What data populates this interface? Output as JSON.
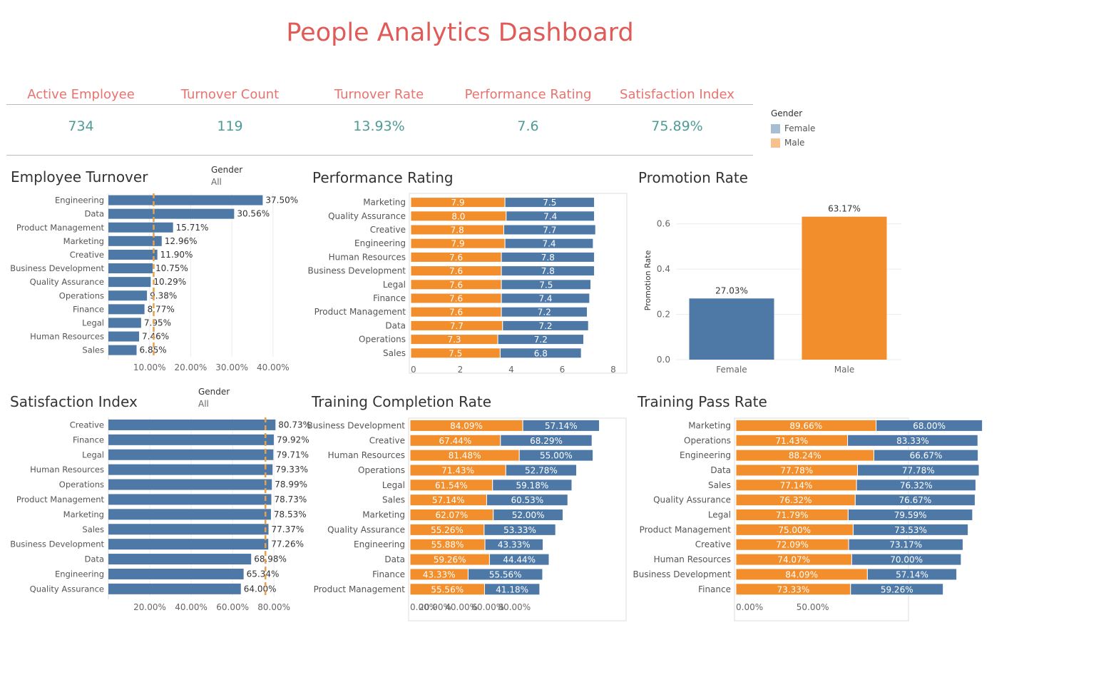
{
  "title": "People Analytics Dashboard",
  "kpis": [
    {
      "label": "Active Employee",
      "value": "734"
    },
    {
      "label": "Turnover Count",
      "value": "119"
    },
    {
      "label": "Turnover Rate",
      "value": "13.93%"
    },
    {
      "label": "Performance Rating",
      "value": "7.6"
    },
    {
      "label": "Satisfaction Index",
      "value": "75.89%"
    }
  ],
  "legend": {
    "title": "Gender",
    "items": [
      {
        "label": "Female",
        "color": "#a8bcd4"
      },
      {
        "label": "Male",
        "color": "#f7c08f"
      }
    ]
  },
  "filters": {
    "turnover": {
      "title": "Gender",
      "value": "All"
    },
    "satisfaction": {
      "title": "Gender",
      "value": "All"
    }
  },
  "colors": {
    "blue": "#4e79a7",
    "orange": "#f28e2b",
    "refline": "#e8a04a"
  },
  "chart_data": [
    {
      "id": "turnover",
      "type": "bar",
      "title": "Employee Turnover",
      "categories": [
        "Engineering",
        "Data",
        "Product Management",
        "Marketing",
        "Creative",
        "Business Development",
        "Quality Assurance",
        "Operations",
        "Finance",
        "Legal",
        "Human Resources",
        "Sales"
      ],
      "values": [
        37.5,
        30.56,
        15.71,
        12.96,
        11.9,
        10.75,
        10.29,
        9.38,
        8.77,
        7.95,
        7.46,
        6.85
      ],
      "value_labels": [
        "37.50%",
        "30.56%",
        "15.71%",
        "12.96%",
        "11.90%",
        "10.75%",
        "10.29%",
        "9.38%",
        "8.77%",
        "7.95%",
        "7.46%",
        "6.85%"
      ],
      "xlim": [
        0,
        48
      ],
      "ticks": [
        10,
        20,
        30,
        40
      ],
      "tick_labels": [
        "10.00%",
        "20.00%",
        "30.00%",
        "40.00%"
      ],
      "reference_line": 11
    },
    {
      "id": "performance",
      "type": "bar",
      "stacked": true,
      "title": "Performance Rating",
      "categories": [
        "Marketing",
        "Quality Assurance",
        "Creative",
        "Engineering",
        "Human Resources",
        "Business Development",
        "Legal",
        "Finance",
        "Product Management",
        "Data",
        "Operations",
        "Sales"
      ],
      "series": [
        {
          "values": [
            7.9,
            8.0,
            7.8,
            7.9,
            7.6,
            7.6,
            7.6,
            7.6,
            7.6,
            7.7,
            7.3,
            7.5
          ],
          "labels": [
            "7.9",
            "8.0",
            "7.8",
            "7.9",
            "7.6",
            "7.6",
            "7.6",
            "7.6",
            "7.6",
            "7.7",
            "7.3",
            "7.5"
          ],
          "color": "#f28e2b"
        },
        {
          "values": [
            7.5,
            7.4,
            7.7,
            7.4,
            7.8,
            7.8,
            7.5,
            7.4,
            7.2,
            7.2,
            7.2,
            6.8
          ],
          "labels": [
            "7.5",
            "7.4",
            "7.7",
            "7.4",
            "7.8",
            "7.8",
            "7.5",
            "7.4",
            "7.2",
            "7.2",
            "7.2",
            "6.8"
          ],
          "color": "#4e79a7"
        }
      ],
      "scale_max": 17.1,
      "ticks": [
        0,
        4.27,
        8.55,
        12.82,
        17.1
      ],
      "tick_labels": [
        "0",
        "2",
        "4",
        "6",
        "8"
      ]
    },
    {
      "id": "promotion",
      "type": "bar",
      "title": "Promotion Rate",
      "ylabel": "Promotion Rate",
      "categories": [
        "Female",
        "Male"
      ],
      "values": [
        0.2703,
        0.6317
      ],
      "value_labels": [
        "27.03%",
        "63.17%"
      ],
      "colors": [
        "#4e79a7",
        "#f28e2b"
      ],
      "ylim": [
        0,
        0.7
      ],
      "ticks": [
        0,
        0.2,
        0.4,
        0.6
      ],
      "tick_labels": [
        "0.0",
        "0.2",
        "0.4",
        "0.6"
      ]
    },
    {
      "id": "satisfaction",
      "type": "bar",
      "title": "Satisfaction Index",
      "categories": [
        "Creative",
        "Finance",
        "Legal",
        "Human Resources",
        "Operations",
        "Product Management",
        "Marketing",
        "Sales",
        "Business Development",
        "Data",
        "Engineering",
        "Quality Assurance"
      ],
      "values": [
        80.73,
        79.92,
        79.71,
        79.33,
        78.99,
        78.73,
        78.53,
        77.37,
        77.26,
        68.98,
        65.34,
        64.0
      ],
      "value_labels": [
        "80.73%",
        "79.92%",
        "79.71%",
        "79.33%",
        "78.99%",
        "78.73%",
        "78.53%",
        "77.37%",
        "77.26%",
        "68.98%",
        "65.34%",
        "64.00%"
      ],
      "xlim": [
        0,
        92
      ],
      "ticks": [
        20,
        40,
        60,
        80
      ],
      "tick_labels": [
        "20.00%",
        "40.00%",
        "60.00%",
        "80.00%"
      ],
      "reference_line": 75.89
    },
    {
      "id": "completion",
      "type": "bar",
      "stacked": true,
      "title": "Training Completion Rate",
      "categories": [
        "Business Development",
        "Creative",
        "Human Resources",
        "Operations",
        "Legal",
        "Sales",
        "Marketing",
        "Quality Assurance",
        "Engineering",
        "Data",
        "Finance",
        "Product Management"
      ],
      "series": [
        {
          "values": [
            84.09,
            67.44,
            81.48,
            71.43,
            61.54,
            57.14,
            62.07,
            55.26,
            55.88,
            59.26,
            43.33,
            55.56
          ],
          "labels": [
            "84.09%",
            "67.44%",
            "81.48%",
            "71.43%",
            "61.54%",
            "57.14%",
            "62.07%",
            "55.26%",
            "55.88%",
            "59.26%",
            "43.33%",
            "55.56%"
          ],
          "color": "#f28e2b"
        },
        {
          "values": [
            57.14,
            68.29,
            55.0,
            52.78,
            59.18,
            60.53,
            52.0,
            53.33,
            43.33,
            44.44,
            55.56,
            41.18
          ],
          "labels": [
            "57.14%",
            "68.29%",
            "55.00%",
            "52.78%",
            "59.18%",
            "60.53%",
            "52.00%",
            "53.33%",
            "43.33%",
            "44.44%",
            "55.56%",
            "41.18%"
          ],
          "color": "#4e79a7"
        }
      ],
      "scale_max": 152.1,
      "ticks": [
        0,
        19.72,
        39.44,
        59.16,
        78.88
      ],
      "tick_labels": [
        "0.00%",
        "20.00%",
        "40.00%",
        "60.00%",
        "80.00%"
      ]
    },
    {
      "id": "pass",
      "type": "bar",
      "stacked": true,
      "title": "Training Pass Rate",
      "categories": [
        "Marketing",
        "Operations",
        "Engineering",
        "Data",
        "Sales",
        "Quality Assurance",
        "Legal",
        "Product Management",
        "Creative",
        "Human Resources",
        "Business Development",
        "Finance"
      ],
      "series": [
        {
          "values": [
            89.66,
            71.43,
            88.24,
            77.78,
            77.14,
            76.32,
            71.79,
            75.0,
            72.09,
            74.07,
            84.09,
            73.33
          ],
          "labels": [
            "89.66%",
            "71.43%",
            "88.24%",
            "77.78%",
            "77.14%",
            "76.32%",
            "71.79%",
            "75.00%",
            "72.09%",
            "74.07%",
            "84.09%",
            "73.33%"
          ],
          "color": "#f28e2b"
        },
        {
          "values": [
            68.0,
            83.33,
            66.67,
            77.78,
            76.32,
            76.67,
            79.59,
            73.53,
            73.17,
            70.0,
            57.14,
            59.26
          ],
          "labels": [
            "68.00%",
            "83.33%",
            "66.67%",
            "77.78%",
            "76.32%",
            "76.67%",
            "79.59%",
            "73.53%",
            "73.17%",
            "70.00%",
            "57.14%",
            "59.26%"
          ],
          "color": "#4e79a7"
        }
      ],
      "scale_max": 171.5,
      "ticks": [
        0,
        50
      ],
      "tick_labels": [
        "0.00%",
        "50.00%"
      ]
    }
  ]
}
